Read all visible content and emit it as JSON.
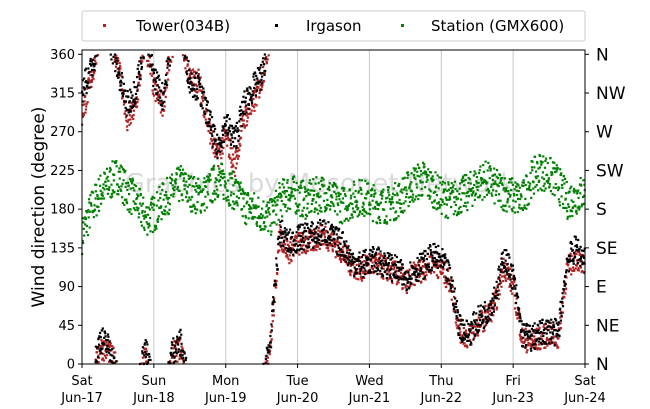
{
  "chart_data": {
    "type": "scatter",
    "title": "",
    "ylabel": "Wind direction (degree)",
    "xlabel": "",
    "ylim": [
      0,
      365
    ],
    "yticks": [
      0,
      45,
      90,
      135,
      180,
      225,
      270,
      315,
      360
    ],
    "compass_labels": [
      "N",
      "NE",
      "E",
      "SE",
      "S",
      "SW",
      "W",
      "NW",
      "N"
    ],
    "x_day_ticks": [
      {
        "day": "Sat",
        "date": "Jun-17"
      },
      {
        "day": "Sun",
        "date": "Jun-18"
      },
      {
        "day": "Mon",
        "date": "Jun-19"
      },
      {
        "day": "Tue",
        "date": "Jun-20"
      },
      {
        "day": "Wed",
        "date": "Jun-21"
      },
      {
        "day": "Thu",
        "date": "Jun-22"
      },
      {
        "day": "Fri",
        "date": "Jun-23"
      },
      {
        "day": "Sat",
        "date": "Jun-24"
      }
    ],
    "grid": "vertical day lines",
    "legend_position": "top",
    "watermark": "Graphics by Mesonet Network",
    "series": [
      {
        "name": "Tower(034B)",
        "color": "#b22222",
        "points_note": "trend of sampled direction vs. date",
        "x": [
          "Jun-17 00:00",
          "Jun-17 03:00",
          "Jun-17 06:00",
          "Jun-17 09:00",
          "Jun-17 12:00",
          "Jun-17 15:00",
          "Jun-17 18:00",
          "Jun-17 21:00",
          "Jun-18 00:00",
          "Jun-18 03:00",
          "Jun-18 06:00",
          "Jun-18 09:00",
          "Jun-18 12:00",
          "Jun-18 15:00",
          "Jun-18 18:00",
          "Jun-18 21:00",
          "Jun-19 00:00",
          "Jun-19 03:00",
          "Jun-19 06:00",
          "Jun-19 09:00",
          "Jun-19 12:00",
          "Jun-19 15:00",
          "Jun-19 18:00",
          "Jun-19 21:00",
          "Jun-20 00:00",
          "Jun-20 03:00",
          "Jun-20 06:00",
          "Jun-20 09:00",
          "Jun-20 12:00",
          "Jun-20 15:00",
          "Jun-20 18:00",
          "Jun-20 21:00",
          "Jun-21 00:00",
          "Jun-21 03:00",
          "Jun-21 06:00",
          "Jun-21 09:00",
          "Jun-21 12:00",
          "Jun-21 15:00",
          "Jun-21 18:00",
          "Jun-21 21:00",
          "Jun-22 00:00",
          "Jun-22 03:00",
          "Jun-22 06:00",
          "Jun-22 09:00",
          "Jun-22 12:00",
          "Jun-22 15:00",
          "Jun-22 18:00",
          "Jun-22 21:00",
          "Jun-23 00:00",
          "Jun-23 03:00",
          "Jun-23 06:00",
          "Jun-23 09:00",
          "Jun-23 12:00",
          "Jun-23 15:00",
          "Jun-23 18:00",
          "Jun-23 21:00",
          "Jun-24 00:00"
        ],
        "y": [
          290,
          330,
          20,
          15,
          355,
          280,
          300,
          15,
          320,
          300,
          10,
          20,
          330,
          330,
          280,
          240,
          265,
          230,
          285,
          300,
          330,
          25,
          150,
          130,
          140,
          140,
          145,
          150,
          140,
          130,
          115,
          110,
          115,
          115,
          110,
          105,
          95,
          105,
          110,
          120,
          110,
          95,
          40,
          30,
          45,
          55,
          70,
          115,
          90,
          30,
          25,
          30,
          35,
          30,
          110,
          125,
          110
        ]
      },
      {
        "name": "Irgason",
        "color": "#000000",
        "points_note": "trend of sampled direction vs. date",
        "x": [
          "Jun-17 00:00",
          "Jun-17 03:00",
          "Jun-17 06:00",
          "Jun-17 09:00",
          "Jun-17 12:00",
          "Jun-17 15:00",
          "Jun-17 18:00",
          "Jun-17 21:00",
          "Jun-18 00:00",
          "Jun-18 03:00",
          "Jun-18 06:00",
          "Jun-18 09:00",
          "Jun-18 12:00",
          "Jun-18 15:00",
          "Jun-18 18:00",
          "Jun-18 21:00",
          "Jun-19 00:00",
          "Jun-19 03:00",
          "Jun-19 06:00",
          "Jun-19 09:00",
          "Jun-19 12:00",
          "Jun-19 15:00",
          "Jun-19 18:00",
          "Jun-19 21:00",
          "Jun-20 00:00",
          "Jun-20 03:00",
          "Jun-20 06:00",
          "Jun-20 09:00",
          "Jun-20 12:00",
          "Jun-20 15:00",
          "Jun-20 18:00",
          "Jun-20 21:00",
          "Jun-21 00:00",
          "Jun-21 03:00",
          "Jun-21 06:00",
          "Jun-21 09:00",
          "Jun-21 12:00",
          "Jun-21 15:00",
          "Jun-21 18:00",
          "Jun-21 21:00",
          "Jun-22 00:00",
          "Jun-22 03:00",
          "Jun-22 06:00",
          "Jun-22 09:00",
          "Jun-22 12:00",
          "Jun-22 15:00",
          "Jun-22 18:00",
          "Jun-22 21:00",
          "Jun-23 00:00",
          "Jun-23 03:00",
          "Jun-23 06:00",
          "Jun-23 09:00",
          "Jun-23 12:00",
          "Jun-23 15:00",
          "Jun-23 18:00",
          "Jun-23 21:00",
          "Jun-24 00:00"
        ],
        "y": [
          320,
          340,
          30,
          20,
          340,
          300,
          320,
          20,
          335,
          310,
          15,
          25,
          330,
          320,
          290,
          250,
          280,
          260,
          300,
          320,
          335,
          30,
          155,
          140,
          145,
          150,
          150,
          155,
          145,
          140,
          120,
          115,
          120,
          120,
          115,
          110,
          100,
          110,
          115,
          125,
          120,
          100,
          45,
          35,
          50,
          60,
          80,
          125,
          100,
          35,
          30,
          35,
          40,
          35,
          120,
          135,
          120
        ]
      },
      {
        "name": "Station (GMX600)",
        "color": "#008000",
        "points_note": "trend of sampled direction vs. date",
        "x": [
          "Jun-17 00:00",
          "Jun-17 03:00",
          "Jun-17 06:00",
          "Jun-17 09:00",
          "Jun-17 12:00",
          "Jun-17 15:00",
          "Jun-17 18:00",
          "Jun-17 21:00",
          "Jun-18 00:00",
          "Jun-18 03:00",
          "Jun-18 06:00",
          "Jun-18 09:00",
          "Jun-18 12:00",
          "Jun-18 15:00",
          "Jun-18 18:00",
          "Jun-18 21:00",
          "Jun-19 00:00",
          "Jun-19 03:00",
          "Jun-19 06:00",
          "Jun-19 09:00",
          "Jun-19 12:00",
          "Jun-19 15:00",
          "Jun-19 18:00",
          "Jun-19 21:00",
          "Jun-20 00:00",
          "Jun-20 03:00",
          "Jun-20 06:00",
          "Jun-20 09:00",
          "Jun-20 12:00",
          "Jun-20 15:00",
          "Jun-20 18:00",
          "Jun-20 21:00",
          "Jun-21 00:00",
          "Jun-21 03:00",
          "Jun-21 06:00",
          "Jun-21 09:00",
          "Jun-21 12:00",
          "Jun-21 15:00",
          "Jun-21 18:00",
          "Jun-21 21:00",
          "Jun-22 00:00",
          "Jun-22 03:00",
          "Jun-22 06:00",
          "Jun-22 09:00",
          "Jun-22 12:00",
          "Jun-22 15:00",
          "Jun-22 18:00",
          "Jun-22 21:00",
          "Jun-23 00:00",
          "Jun-23 03:00",
          "Jun-23 06:00",
          "Jun-23 09:00",
          "Jun-23 12:00",
          "Jun-23 15:00",
          "Jun-23 18:00",
          "Jun-23 21:00",
          "Jun-24 00:00"
        ],
        "y": [
          150,
          180,
          200,
          210,
          220,
          200,
          190,
          170,
          175,
          190,
          200,
          210,
          200,
          195,
          200,
          215,
          210,
          200,
          185,
          180,
          175,
          170,
          190,
          200,
          195,
          190,
          195,
          200,
          190,
          185,
          190,
          195,
          190,
          185,
          185,
          190,
          200,
          210,
          215,
          205,
          195,
          190,
          195,
          200,
          210,
          215,
          205,
          200,
          195,
          190,
          215,
          225,
          220,
          210,
          190,
          195,
          200
        ]
      }
    ]
  }
}
